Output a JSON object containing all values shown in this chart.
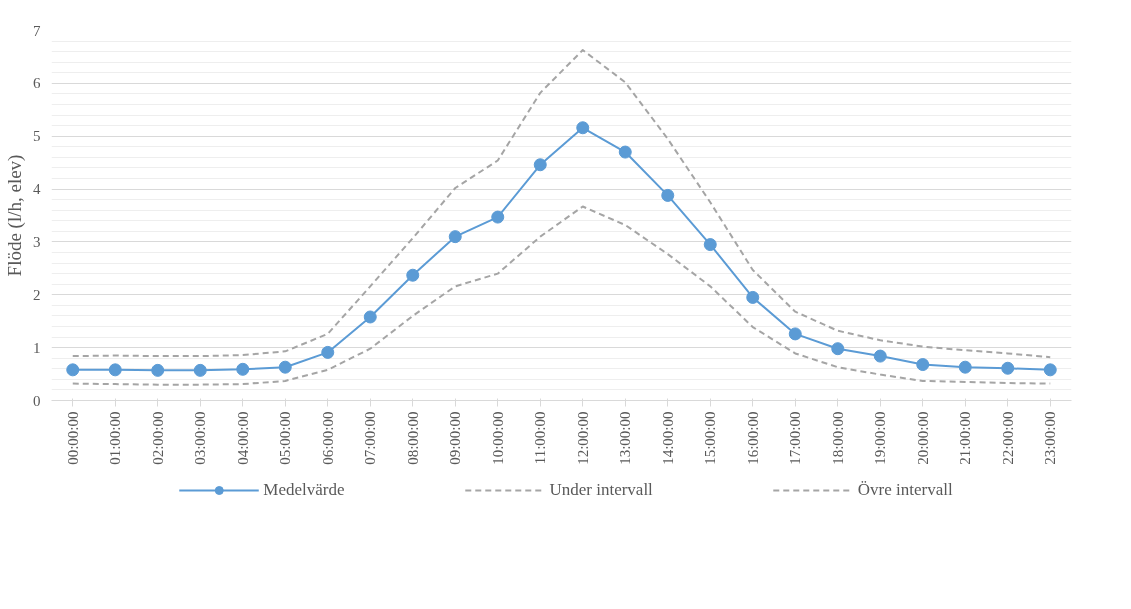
{
  "chart_data": {
    "type": "line",
    "ylabel": "Flöde (l/h, elev)",
    "categories": [
      "00:00:00",
      "01:00:00",
      "02:00:00",
      "03:00:00",
      "04:00:00",
      "05:00:00",
      "06:00:00",
      "07:00:00",
      "08:00:00",
      "09:00:00",
      "10:00:00",
      "11:00:00",
      "12:00:00",
      "13:00:00",
      "14:00:00",
      "15:00:00",
      "16:00:00",
      "17:00:00",
      "18:00:00",
      "19:00:00",
      "20:00:00",
      "21:00:00",
      "22:00:00",
      "23:00:00"
    ],
    "series": [
      {
        "name": "Medelvärde",
        "color": "#5b9bd5",
        "marker": "circle",
        "line_style": "solid",
        "values": [
          0.58,
          0.58,
          0.57,
          0.57,
          0.59,
          0.63,
          0.91,
          1.58,
          2.37,
          3.1,
          3.47,
          4.46,
          5.16,
          4.7,
          3.88,
          2.95,
          1.95,
          1.26,
          0.98,
          0.84,
          0.68,
          0.63,
          0.61,
          0.58
        ]
      },
      {
        "name": "Under intervall",
        "color": "#a5a5a5",
        "marker": "none",
        "line_style": "dashed",
        "values": [
          0.32,
          0.31,
          0.3,
          0.3,
          0.31,
          0.37,
          0.58,
          0.98,
          1.6,
          2.16,
          2.4,
          3.1,
          3.67,
          3.32,
          2.77,
          2.16,
          1.39,
          0.89,
          0.63,
          0.49,
          0.37,
          0.35,
          0.33,
          0.32
        ]
      },
      {
        "name": "Övre intervall",
        "color": "#a5a5a5",
        "marker": "none",
        "line_style": "dashed",
        "values": [
          0.84,
          0.85,
          0.84,
          0.84,
          0.86,
          0.93,
          1.26,
          2.16,
          3.07,
          4.02,
          4.54,
          5.82,
          6.63,
          6.02,
          4.95,
          3.75,
          2.47,
          1.68,
          1.32,
          1.14,
          1.02,
          0.95,
          0.89,
          0.82
        ]
      }
    ],
    "ylim": [
      0,
      7
    ],
    "yticks": [
      0,
      1,
      2,
      3,
      4,
      5,
      6,
      7
    ],
    "grid": "y",
    "legend": "bottom"
  }
}
